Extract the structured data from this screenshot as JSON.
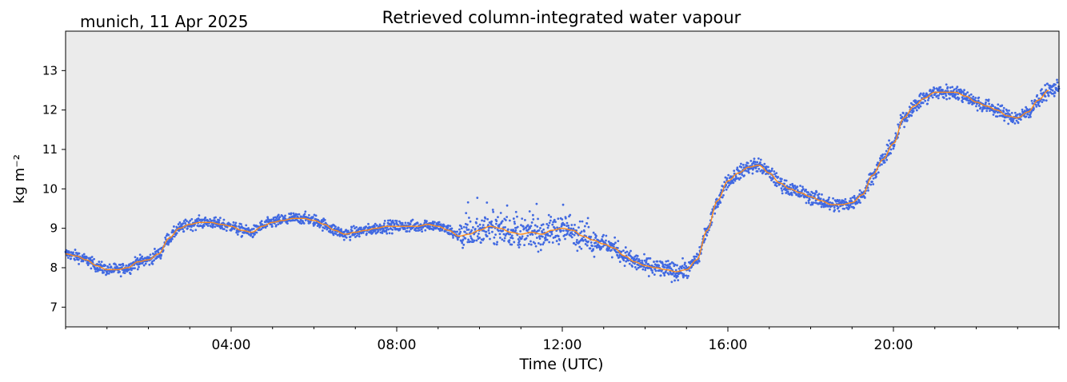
{
  "chart_data": {
    "type": "line",
    "title": "Retrieved column-integrated water vapour",
    "location_date": "munich, 11 Apr 2025",
    "xlabel": "Time (UTC)",
    "ylabel": "kg m⁻²",
    "xlim_hours": [
      0,
      24
    ],
    "ylim": [
      6.5,
      14.0
    ],
    "x_ticks": [
      "04:00",
      "08:00",
      "12:00",
      "16:00",
      "20:00"
    ],
    "y_ticks": [
      "7",
      "8",
      "9",
      "10",
      "11",
      "12",
      "13"
    ],
    "grid": false,
    "plot_background": "#ebebeb",
    "series": [
      {
        "style": "scatter",
        "color": "#4169e1",
        "note_hours": "raw retrievals (dense)",
        "x": [
          0.0,
          0.25,
          0.5,
          0.75,
          1.0,
          1.25,
          1.5,
          1.75,
          2.0,
          2.25,
          2.5,
          2.75,
          3.0,
          3.25,
          3.5,
          3.75,
          4.0,
          4.25,
          4.5,
          4.75,
          5.0,
          5.25,
          5.5,
          5.75,
          6.0,
          6.25,
          6.5,
          6.75,
          7.0,
          7.25,
          7.5,
          7.75,
          8.0,
          8.25,
          8.5,
          8.75,
          9.0,
          9.25,
          9.5,
          9.75,
          10.0,
          10.25,
          10.5,
          10.75,
          11.0,
          11.25,
          11.5,
          11.75,
          12.0,
          12.25,
          12.5,
          12.75,
          13.0,
          13.25,
          13.5,
          13.75,
          14.0,
          14.25,
          14.5,
          14.75,
          15.0,
          15.25,
          15.5,
          15.75,
          16.0,
          16.25,
          16.5,
          16.75,
          17.0,
          17.25,
          17.5,
          17.75,
          18.0,
          18.25,
          18.5,
          18.75,
          19.0,
          19.25,
          19.5,
          19.75,
          20.0,
          20.25,
          20.5,
          20.75,
          21.0,
          21.25,
          21.5,
          21.75,
          22.0,
          22.25,
          22.5,
          22.75,
          23.0,
          23.25,
          23.5,
          23.75,
          24.0
        ],
        "y": [
          8.35,
          8.3,
          8.2,
          8.05,
          7.95,
          7.95,
          8.0,
          8.15,
          8.2,
          8.35,
          8.75,
          9.0,
          9.1,
          9.15,
          9.15,
          9.1,
          9.05,
          8.95,
          8.9,
          9.05,
          9.15,
          9.2,
          9.25,
          9.25,
          9.2,
          9.1,
          8.95,
          8.85,
          8.9,
          8.95,
          9.0,
          9.05,
          9.05,
          9.05,
          9.05,
          9.1,
          9.05,
          8.95,
          8.8,
          8.85,
          8.95,
          9.05,
          9.0,
          8.9,
          8.85,
          8.9,
          8.85,
          8.95,
          9.0,
          8.95,
          8.8,
          8.7,
          8.6,
          8.5,
          8.3,
          8.15,
          8.05,
          8.0,
          7.95,
          7.9,
          7.95,
          8.2,
          8.95,
          9.7,
          10.2,
          10.4,
          10.55,
          10.6,
          10.4,
          10.15,
          10.0,
          9.9,
          9.8,
          9.7,
          9.6,
          9.6,
          9.65,
          9.85,
          10.35,
          10.75,
          11.15,
          11.8,
          12.1,
          12.3,
          12.45,
          12.45,
          12.45,
          12.35,
          12.2,
          12.1,
          12.0,
          11.85,
          11.8,
          11.95,
          12.25,
          12.5,
          12.55
        ]
      },
      {
        "style": "line",
        "color": "#ff8c1a",
        "x": [
          0.0,
          0.25,
          0.5,
          0.75,
          1.0,
          1.25,
          1.5,
          1.75,
          2.0,
          2.25,
          2.5,
          2.75,
          3.0,
          3.25,
          3.5,
          3.75,
          4.0,
          4.25,
          4.5,
          4.75,
          5.0,
          5.25,
          5.5,
          5.75,
          6.0,
          6.25,
          6.5,
          6.75,
          7.0,
          7.25,
          7.5,
          7.75,
          8.0,
          8.25,
          8.5,
          8.75,
          9.0,
          9.25,
          9.5,
          9.75,
          10.0,
          10.25,
          10.5,
          10.75,
          11.0,
          11.25,
          11.5,
          11.75,
          12.0,
          12.25,
          12.5,
          12.75,
          13.0,
          13.25,
          13.5,
          13.75,
          14.0,
          14.25,
          14.5,
          14.75,
          15.0,
          15.25,
          15.5,
          15.75,
          16.0,
          16.25,
          16.5,
          16.75,
          17.0,
          17.25,
          17.5,
          17.75,
          18.0,
          18.25,
          18.5,
          18.75,
          19.0,
          19.25,
          19.5,
          19.75,
          20.0,
          20.25,
          20.5,
          20.75,
          21.0,
          21.25,
          21.5,
          21.75,
          22.0,
          22.25,
          22.5,
          22.75,
          23.0,
          23.25,
          23.5,
          23.75
        ],
        "y": [
          8.35,
          8.3,
          8.2,
          8.05,
          7.95,
          7.95,
          8.0,
          8.15,
          8.2,
          8.35,
          8.75,
          9.0,
          9.1,
          9.15,
          9.15,
          9.1,
          9.05,
          8.95,
          8.9,
          9.05,
          9.15,
          9.2,
          9.25,
          9.25,
          9.2,
          9.1,
          8.95,
          8.85,
          8.9,
          8.95,
          9.0,
          9.05,
          9.05,
          9.05,
          9.05,
          9.1,
          9.05,
          8.95,
          8.8,
          8.85,
          8.95,
          9.05,
          9.0,
          8.9,
          8.85,
          8.9,
          8.85,
          8.95,
          9.0,
          8.95,
          8.8,
          8.7,
          8.6,
          8.5,
          8.3,
          8.15,
          8.05,
          8.0,
          7.95,
          7.9,
          7.95,
          8.2,
          8.95,
          9.7,
          10.2,
          10.4,
          10.55,
          10.6,
          10.4,
          10.15,
          10.0,
          9.9,
          9.8,
          9.7,
          9.6,
          9.6,
          9.65,
          9.85,
          10.35,
          10.75,
          11.15,
          11.8,
          12.1,
          12.3,
          12.45,
          12.45,
          12.45,
          12.35,
          12.2,
          12.1,
          12.0,
          11.85,
          11.8,
          11.95,
          12.25,
          12.5
        ]
      }
    ]
  }
}
